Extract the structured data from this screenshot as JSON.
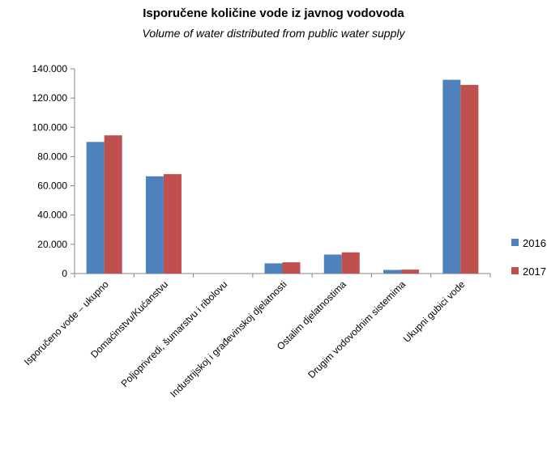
{
  "chart_data": {
    "type": "bar",
    "title": "Isporučene količine vode iz javnog vodovoda",
    "subtitle": "Volume of water distributed from public water supply",
    "xlabel": "",
    "ylabel": "",
    "ylim": [
      0,
      140000
    ],
    "y_ticks": [
      0,
      20000,
      40000,
      60000,
      80000,
      100000,
      120000,
      140000
    ],
    "y_tick_labels": [
      "0",
      "20.000",
      "40.000",
      "60.000",
      "80.000",
      "100.000",
      "120.000",
      "140.000"
    ],
    "categories": [
      "Isporučeno vode – ukupno",
      "Domaćinstvu/Kućanstvu",
      "Poljoprivredi, šumarstvu i ribolovu",
      "Industrijskoj i građevinskoj djelatnosti",
      "Ostalim djelatnostima",
      "Drugim vodovodnim sistemima",
      "Ukupni gubici vode"
    ],
    "series": [
      {
        "name": "2016",
        "color": "#4f81bd",
        "values": [
          90000,
          66500,
          0,
          7000,
          13000,
          2500,
          132500
        ]
      },
      {
        "name": "2017",
        "color": "#c0504d",
        "values": [
          94500,
          68000,
          0,
          7700,
          14500,
          2700,
          129000
        ]
      }
    ],
    "grid": false,
    "legend": "right"
  }
}
